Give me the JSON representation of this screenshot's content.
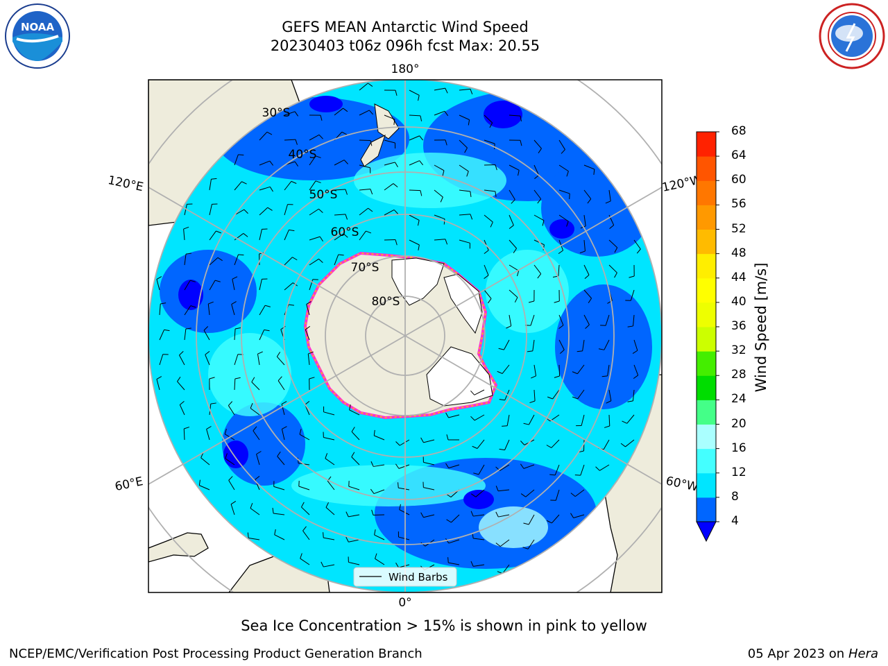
{
  "title": {
    "line1": "GEFS MEAN Antarctic Wind Speed",
    "line2": "20230403 t06z 096h fcst   Max: 20.55"
  },
  "map": {
    "projection": "south-polar-stereographic",
    "lon_labels": {
      "top": "180°",
      "bottom": "0°",
      "upper_left": "120°E",
      "upper_right": "120°W",
      "lower_left": "60°E",
      "lower_right": "60°W"
    },
    "lat_labels": [
      "30°S",
      "40°S",
      "50°S",
      "60°S",
      "70°S",
      "80°S"
    ],
    "legend_label": "Wind Barbs",
    "colors": {
      "land": "#eeecdc",
      "ice": "#ffffff",
      "grid": "#b0b0b0",
      "sea_ice_edge": [
        "#ff33cc",
        "#ffcc00"
      ]
    }
  },
  "colorbar": {
    "label": "Wind Speed [m/s]",
    "ticks": [
      "4",
      "8",
      "12",
      "16",
      "20",
      "24",
      "28",
      "32",
      "36",
      "40",
      "44",
      "48",
      "52",
      "56",
      "60",
      "64",
      "68"
    ],
    "colors": [
      "#0066ff",
      "#00e5ff",
      "#44ffff",
      "#aaffff",
      "#44ff88",
      "#00dd00",
      "#44ee00",
      "#ccff00",
      "#eeff00",
      "#ffff00",
      "#ffee00",
      "#ffbb00",
      "#ff9900",
      "#ff7700",
      "#ff5500",
      "#ff2200",
      "#ff0000"
    ],
    "extend_color": "#0000ff"
  },
  "note": "Sea Ice Concentration > 15% is shown in pink to yellow",
  "footer": {
    "left": "NCEP/EMC/Verification Post Processing Product Generation Branch",
    "right_date": "05 Apr 2023 on",
    "right_host": "Hera"
  },
  "logos": {
    "left": "NOAA",
    "right": "NATIONAL WEATHER SERVICE"
  }
}
